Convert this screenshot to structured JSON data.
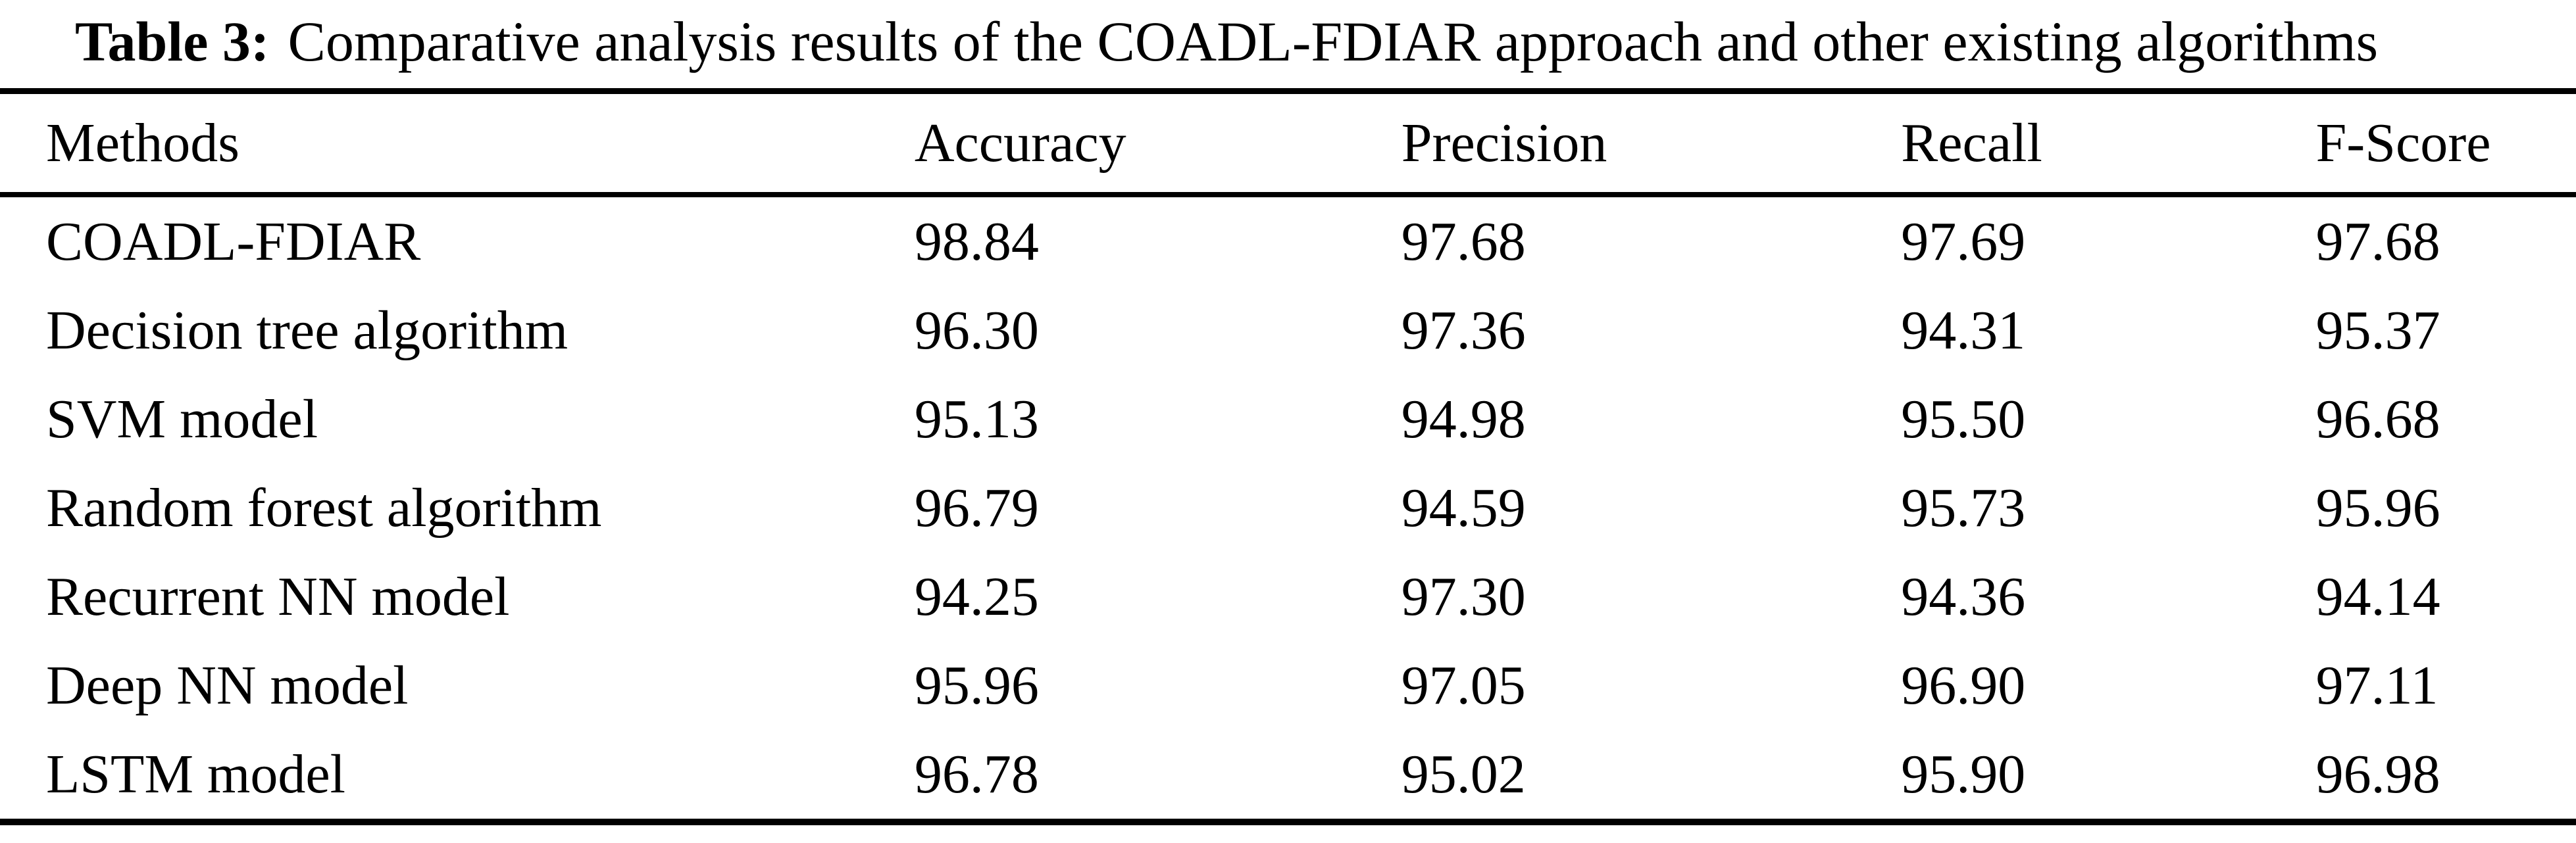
{
  "caption": {
    "label": "Table 3:",
    "text": "Comparative analysis results of the COADL-FDIAR approach and other existing algorithms"
  },
  "table": {
    "columns": [
      "Methods",
      "Accuracy",
      "Precision",
      "Recall",
      "F-Score"
    ],
    "rows": [
      [
        "COADL-FDIAR",
        "98.84",
        "97.68",
        "97.69",
        "97.68"
      ],
      [
        "Decision tree algorithm",
        "96.30",
        "97.36",
        "94.31",
        "95.37"
      ],
      [
        "SVM model",
        "95.13",
        "94.98",
        "95.50",
        "96.68"
      ],
      [
        "Random forest algorithm",
        "96.79",
        "94.59",
        "95.73",
        "95.96"
      ],
      [
        "Recurrent NN model",
        "94.25",
        "97.30",
        "94.36",
        "94.14"
      ],
      [
        "Deep NN model",
        "95.96",
        "97.05",
        "96.90",
        "97.11"
      ],
      [
        "LSTM model",
        "96.78",
        "95.02",
        "95.90",
        "96.98"
      ]
    ]
  },
  "colors": {
    "text": "#000000",
    "background": "#ffffff",
    "rule": "#000000"
  }
}
